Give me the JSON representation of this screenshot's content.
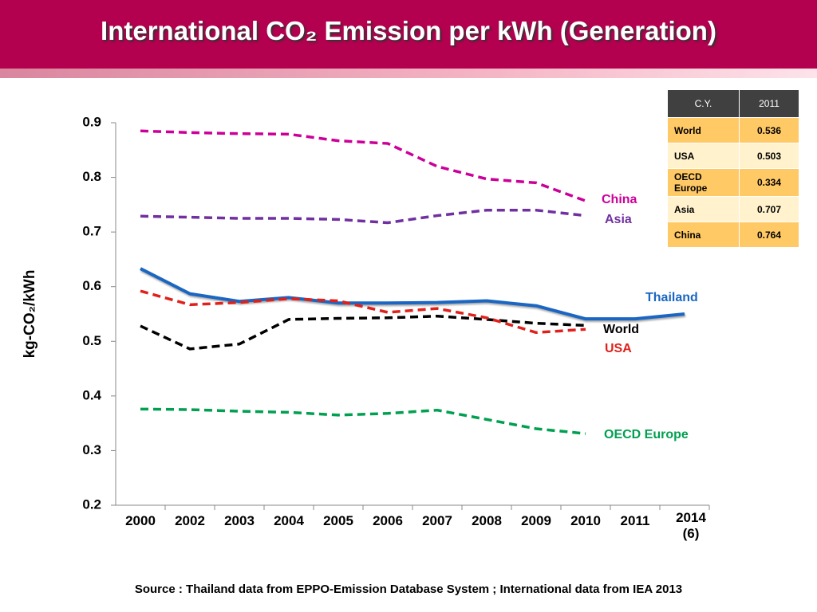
{
  "title": "International CO₂ Emission per kWh (Generation)",
  "chart_data": {
    "type": "line",
    "ylabel": "kg-CO₂/kWh",
    "categories": [
      "2000",
      "2002",
      "2003",
      "2004",
      "2005",
      "2006",
      "2007",
      "2008",
      "2009",
      "2010",
      "2011",
      "2014 (6)"
    ],
    "ylim": [
      0.2,
      0.9
    ],
    "yticks": [
      0.2,
      0.3,
      0.4,
      0.5,
      0.6,
      0.7,
      0.8,
      0.9
    ],
    "series": [
      {
        "name": "China",
        "color": "#cc0099",
        "style": "dashed",
        "values": [
          0.885,
          0.882,
          0.88,
          0.879,
          0.867,
          0.862,
          0.82,
          0.797,
          0.79,
          0.757,
          null,
          null
        ]
      },
      {
        "name": "Asia",
        "color": "#7030a0",
        "style": "dashed",
        "values": [
          0.729,
          0.727,
          0.725,
          0.725,
          0.723,
          0.717,
          0.73,
          0.74,
          0.74,
          0.73,
          null,
          null
        ]
      },
      {
        "name": "Thailand",
        "color": "#1a66c2",
        "style": "solid",
        "values": [
          0.633,
          0.587,
          0.573,
          0.58,
          0.57,
          0.57,
          0.571,
          0.574,
          0.565,
          0.541,
          0.541,
          0.55
        ]
      },
      {
        "name": "World",
        "color": "#000000",
        "style": "dashed",
        "values": [
          0.528,
          0.486,
          0.495,
          0.54,
          0.542,
          0.543,
          0.546,
          0.54,
          0.533,
          0.529,
          null,
          null
        ]
      },
      {
        "name": "USA",
        "color": "#e0201a",
        "style": "dashed",
        "values": [
          0.592,
          0.567,
          0.571,
          0.578,
          0.574,
          0.553,
          0.56,
          0.543,
          0.516,
          0.522,
          null,
          null
        ]
      },
      {
        "name": "OECD Europe",
        "color": "#00a050",
        "style": "dashed",
        "values": [
          0.376,
          0.375,
          0.372,
          0.37,
          0.365,
          0.368,
          0.374,
          0.357,
          0.34,
          0.331,
          null,
          null
        ]
      }
    ]
  },
  "table": {
    "header": [
      "C.Y.",
      "2011"
    ],
    "rows": [
      [
        "World",
        "0.536"
      ],
      [
        "USA",
        "0.503"
      ],
      [
        "OECD Europe",
        "0.334"
      ],
      [
        "Asia",
        "0.707"
      ],
      [
        "China",
        "0.764"
      ]
    ]
  },
  "source": "Source :  Thailand data from EPPO-Emission Database System ; International data from IEA 2013"
}
